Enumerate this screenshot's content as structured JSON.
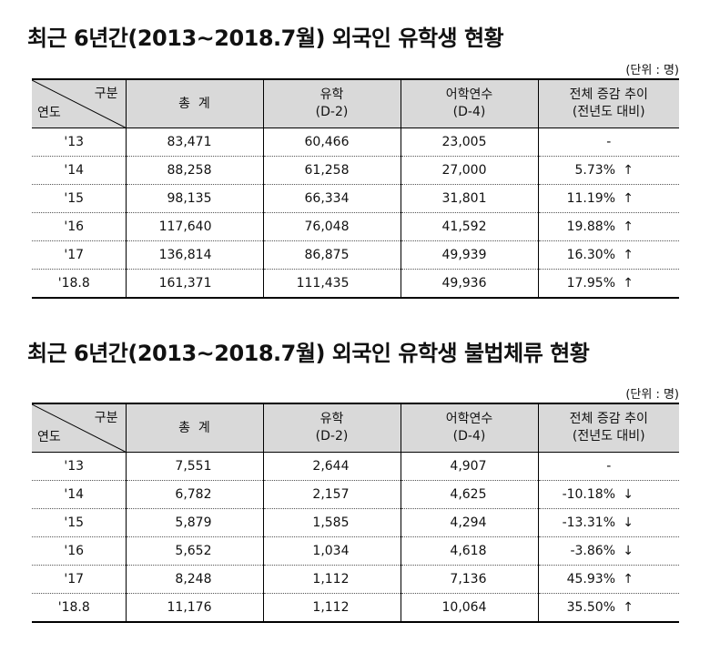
{
  "tables": [
    {
      "title": "최근 6년간(2013~2018.7월) 외국인 유학생 현황",
      "unit": "(단위 : 명)",
      "header": {
        "corner_top": "구분",
        "corner_bottom": "연도",
        "total": "총  계",
        "study_line1": "유학",
        "study_line2": "(D-2)",
        "lang_line1": "어학연수",
        "lang_line2": "(D-4)",
        "change_line1": "전체 증감 추이",
        "change_line2": "(전년도 대비)"
      },
      "rows": [
        {
          "year": "'13",
          "total": "83,471",
          "d2": "60,466",
          "d4": "23,005",
          "change": "-",
          "arrow": ""
        },
        {
          "year": "'14",
          "total": "88,258",
          "d2": "61,258",
          "d4": "27,000",
          "change": "5.73%",
          "arrow": "↑"
        },
        {
          "year": "'15",
          "total": "98,135",
          "d2": "66,334",
          "d4": "31,801",
          "change": "11.19%",
          "arrow": "↑"
        },
        {
          "year": "'16",
          "total": "117,640",
          "d2": "76,048",
          "d4": "41,592",
          "change": "19.88%",
          "arrow": "↑"
        },
        {
          "year": "'17",
          "total": "136,814",
          "d2": "86,875",
          "d4": "49,939",
          "change": "16.30%",
          "arrow": "↑"
        },
        {
          "year": "'18.8",
          "total": "161,371",
          "d2": "111,435",
          "d4": "49,936",
          "change": "17.95%",
          "arrow": "↑"
        }
      ]
    },
    {
      "title": "최근 6년간(2013~2018.7월) 외국인 유학생 불법체류 현황",
      "unit": "(단위 : 명)",
      "header": {
        "corner_top": "구분",
        "corner_bottom": "연도",
        "total": "총  계",
        "study_line1": "유학",
        "study_line2": "(D-2)",
        "lang_line1": "어학연수",
        "lang_line2": "(D-4)",
        "change_line1": "전체 증감 추이",
        "change_line2": "(전년도 대비)"
      },
      "rows": [
        {
          "year": "'13",
          "total": "7,551",
          "d2": "2,644",
          "d4": "4,907",
          "change": "-",
          "arrow": ""
        },
        {
          "year": "'14",
          "total": "6,782",
          "d2": "2,157",
          "d4": "4,625",
          "change": "-10.18%",
          "arrow": "↓"
        },
        {
          "year": "'15",
          "total": "5,879",
          "d2": "1,585",
          "d4": "4,294",
          "change": "-13.31%",
          "arrow": "↓"
        },
        {
          "year": "'16",
          "total": "5,652",
          "d2": "1,034",
          "d4": "4,618",
          "change": "-3.86%",
          "arrow": "↓"
        },
        {
          "year": "'17",
          "total": "8,248",
          "d2": "1,112",
          "d4": "7,136",
          "change": "45.93%",
          "arrow": "↑"
        },
        {
          "year": "'18.8",
          "total": "11,176",
          "d2": "1,112",
          "d4": "10,064",
          "change": "35.50%",
          "arrow": "↑"
        }
      ]
    }
  ]
}
